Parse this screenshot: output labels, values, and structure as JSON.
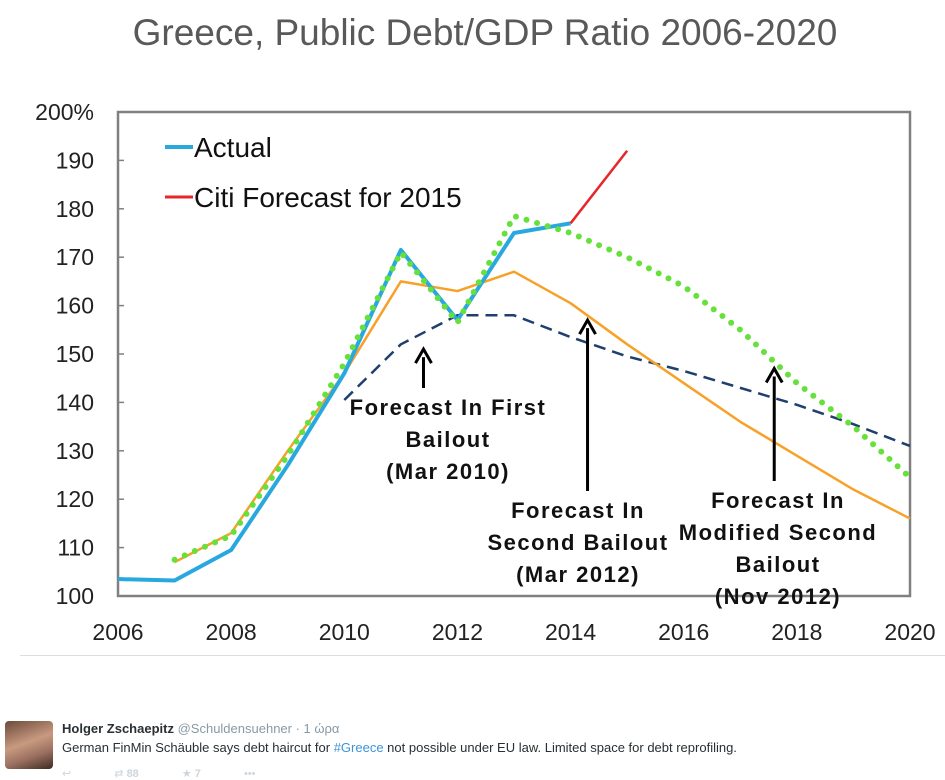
{
  "chart_data": {
    "type": "line",
    "title": "Greece, Public Debt/GDP Ratio 2006-2020",
    "xlabel": "",
    "ylabel": "",
    "xlim": [
      2006,
      2020
    ],
    "ylim": [
      100,
      200
    ],
    "xticks": [
      "2006",
      "2008",
      "2010",
      "2012",
      "2014",
      "2016",
      "2018",
      "2020"
    ],
    "yticks": [
      "100",
      "110",
      "120",
      "130",
      "140",
      "150",
      "160",
      "170",
      "180",
      "190",
      "200%"
    ],
    "legend_position": "top-left",
    "series": [
      {
        "name": "Actual",
        "color": "#29a8e0",
        "style": "solid",
        "x": [
          2006,
          2007,
          2008,
          2009,
          2010,
          2011,
          2012,
          2013,
          2014
        ],
        "y": [
          103.5,
          103.2,
          109.5,
          127,
          146,
          171.5,
          157,
          175,
          177
        ]
      },
      {
        "name": "Citi Forecast for 2015",
        "color": "#e8252a",
        "style": "solid",
        "x": [
          2014,
          2015
        ],
        "y": [
          177,
          192
        ]
      },
      {
        "name": "Forecast In First Bailout (Mar 2010)",
        "color": "#1f3f6e",
        "style": "dashed",
        "x": [
          2010,
          2011,
          2012,
          2013,
          2014,
          2015,
          2016,
          2017,
          2018,
          2019,
          2020
        ],
        "y": [
          140.5,
          152,
          158,
          158,
          153.5,
          149.5,
          146.5,
          143,
          139.5,
          135.5,
          131
        ]
      },
      {
        "name": "Forecast In Second Bailout (Mar 2012)",
        "color": "#f7a128",
        "style": "solid",
        "x": [
          2007,
          2008,
          2009,
          2010,
          2011,
          2012,
          2013,
          2014,
          2015,
          2016,
          2017,
          2018,
          2019,
          2020
        ],
        "y": [
          107,
          113,
          130,
          146,
          165,
          163,
          167,
          160.5,
          152,
          144,
          136,
          129,
          122,
          116
        ]
      },
      {
        "name": "Forecast In Modified Second Bailout (Nov 2012)",
        "color": "#66e03a",
        "style": "dotted",
        "x": [
          2007,
          2008,
          2009,
          2010,
          2011,
          2012,
          2013,
          2014,
          2015,
          2016,
          2017,
          2018,
          2019,
          2020
        ],
        "y": [
          107.5,
          112.5,
          129,
          148,
          171,
          156.5,
          178.5,
          175,
          170,
          164,
          155,
          144,
          135,
          124.5
        ]
      }
    ],
    "legend": [
      "Actual",
      "Citi Forecast for 2015"
    ],
    "annotations": [
      {
        "lines": [
          "Forecast In First",
          "Bailout",
          "(Mar 2010)"
        ],
        "arrow_to": [
          2011.4,
          151
        ]
      },
      {
        "lines": [
          "Forecast In",
          "Second Bailout",
          "(Mar 2012)"
        ],
        "arrow_to": [
          2014.3,
          157
        ]
      },
      {
        "lines": [
          "Forecast In",
          "Modified Second",
          "Bailout",
          "(Nov 2012)"
        ],
        "arrow_to": [
          2017.6,
          147
        ]
      }
    ]
  },
  "tweet": {
    "name": "Holger Zschaepitz",
    "handle": "@Schuldensuehner",
    "time": "· 1 ώρα",
    "text_before": "German FinMin Schäuble says debt haircut for ",
    "hashtag": "#Greece",
    "text_after": " not possible under EU law. Limited space for debt reprofiling.",
    "retweets": "88",
    "favorites": "7"
  }
}
